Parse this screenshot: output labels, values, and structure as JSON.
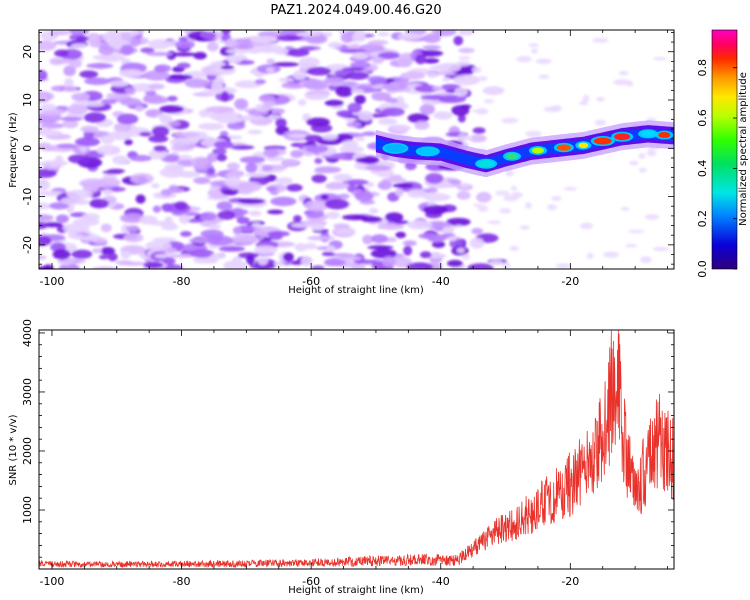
{
  "title": "PAZ1.2024.049.00.46.G20",
  "chart_data": [
    {
      "type": "heatmap",
      "xlabel": "Height of straight line (km)",
      "ylabel": "Frequency (Hz)",
      "xlim": [
        -102,
        -4
      ],
      "ylim": [
        -25,
        24.5
      ],
      "xticks": [
        -100,
        -80,
        -60,
        -40,
        -20
      ],
      "yticks": [
        -20,
        -10,
        0,
        10,
        20
      ],
      "grid": false,
      "colormap": "gist_ncar-like (purple → blue → cyan → green → yellow → orange → red → magenta)",
      "colorbar": {
        "label": "Normalized spectral amplitude",
        "range": [
          0,
          0.95
        ],
        "ticks": [
          0.0,
          0.2,
          0.4,
          0.6,
          0.8
        ]
      },
      "description_points": {
        "noise_region_x": [
          -102,
          -36
        ],
        "signal_track": [
          {
            "x": -50,
            "y": 1.0
          },
          {
            "x": -47,
            "y": 0.0
          },
          {
            "x": -44,
            "y": -0.5
          },
          {
            "x": -40,
            "y": -0.8
          },
          {
            "x": -36,
            "y": -2.3
          },
          {
            "x": -33,
            "y": -3.2
          },
          {
            "x": -30,
            "y": -2.0
          },
          {
            "x": -26,
            "y": -0.6
          },
          {
            "x": -22,
            "y": 0.0
          },
          {
            "x": -18,
            "y": 0.6
          },
          {
            "x": -15,
            "y": 1.5
          },
          {
            "x": -12,
            "y": 2.4
          },
          {
            "x": -8,
            "y": 3.0
          },
          {
            "x": -4,
            "y": 2.6
          }
        ]
      }
    },
    {
      "type": "line",
      "xlabel": "Height of straight line (km)",
      "ylabel": "SNR (10 * v/v)",
      "xlim": [
        -102,
        -4
      ],
      "ylim": [
        0,
        4050
      ],
      "xticks": [
        -100,
        -80,
        -60,
        -40,
        -20
      ],
      "yticks": [
        1000,
        2000,
        3000,
        4000
      ],
      "grid": false,
      "series": [
        {
          "color": "#e8322b",
          "envelope": [
            {
              "x": -102,
              "y": 120
            },
            {
              "x": -90,
              "y": 110
            },
            {
              "x": -80,
              "y": 120
            },
            {
              "x": -70,
              "y": 130
            },
            {
              "x": -60,
              "y": 150
            },
            {
              "x": -50,
              "y": 200
            },
            {
              "x": -42,
              "y": 220
            },
            {
              "x": -38,
              "y": 200
            },
            {
              "x": -35,
              "y": 380
            },
            {
              "x": -32,
              "y": 650
            },
            {
              "x": -29,
              "y": 850
            },
            {
              "x": -26,
              "y": 1050
            },
            {
              "x": -23,
              "y": 1350
            },
            {
              "x": -20,
              "y": 1600
            },
            {
              "x": -17,
              "y": 2000
            },
            {
              "x": -14.5,
              "y": 2600
            },
            {
              "x": -13,
              "y": 3800
            },
            {
              "x": -11.5,
              "y": 2200
            },
            {
              "x": -10,
              "y": 1400
            },
            {
              "x": -8,
              "y": 2000
            },
            {
              "x": -6,
              "y": 2500
            },
            {
              "x": -4,
              "y": 2000
            }
          ]
        }
      ]
    }
  ]
}
